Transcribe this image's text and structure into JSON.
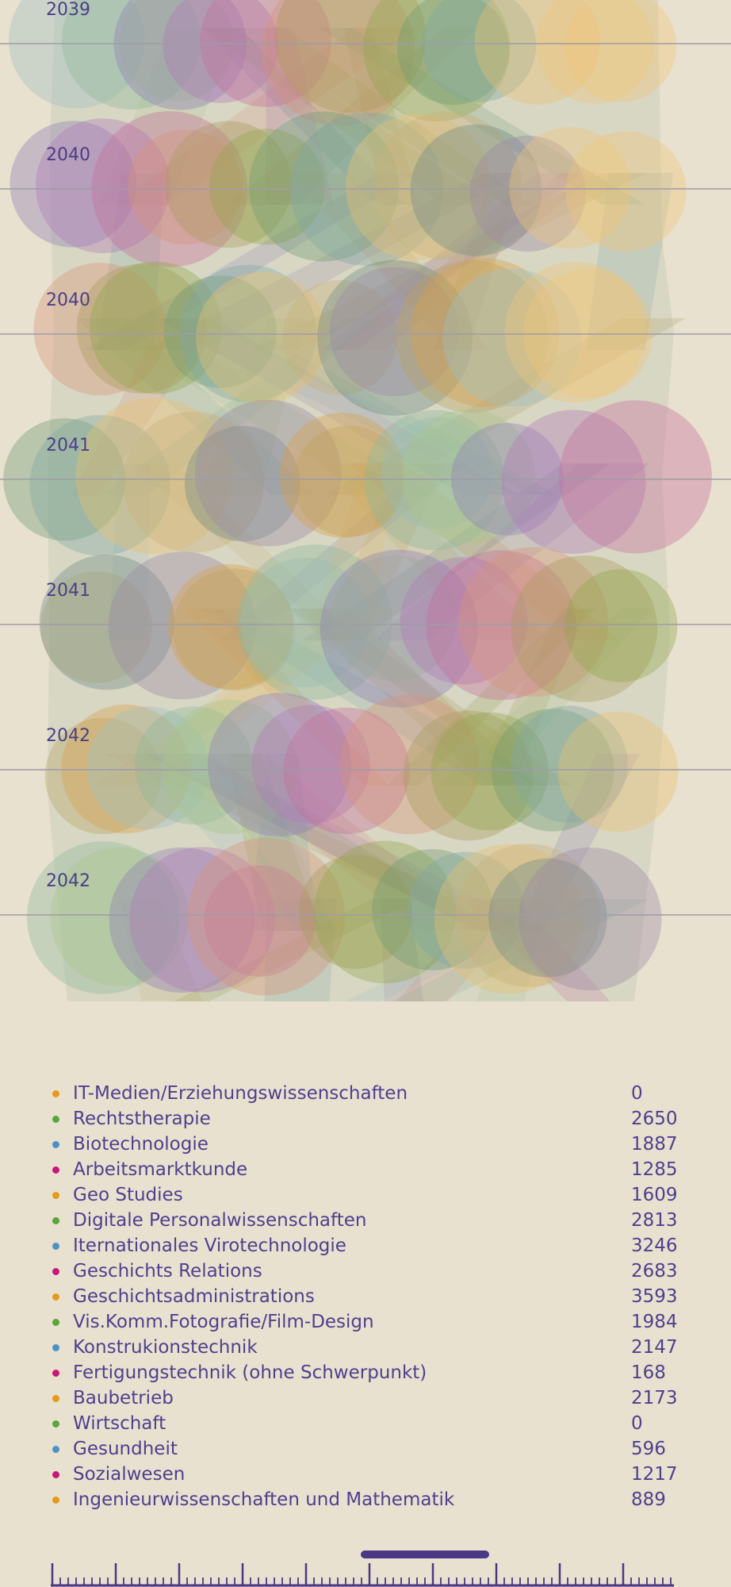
{
  "colors": {
    "background": "#e8e1cf",
    "text": "#4f3f8e",
    "gridline": "#9f9ba8",
    "orange": "#e59a1c",
    "green": "#5aa53c",
    "blue": "#4b93c4",
    "magenta": "#c8177a",
    "timeline": "#4a3886"
  },
  "chart_data": {
    "type": "scatter",
    "title": "",
    "xlabel": "",
    "ylabel": "",
    "rows": [
      "2039",
      "2040",
      "2040",
      "2041",
      "2041",
      "2042",
      "2042"
    ],
    "grid": true,
    "legend_placement": "bottom"
  },
  "legend": [
    {
      "name": "IT-Medien/Erziehungswissenschaften",
      "value": "0",
      "color": "orange"
    },
    {
      "name": "Rechtstherapie",
      "value": "2650",
      "color": "green"
    },
    {
      "name": "Biotechnologie",
      "value": "1887",
      "color": "blue"
    },
    {
      "name": "Arbeitsmarktkunde",
      "value": "1285",
      "color": "magenta"
    },
    {
      "name": "Geo Studies",
      "value": "1609",
      "color": "orange"
    },
    {
      "name": "Digitale Personalwissenschaften",
      "value": "2813",
      "color": "green"
    },
    {
      "name": "Iternationales Virotechnologie",
      "value": "3246",
      "color": "blue"
    },
    {
      "name": "Geschichts Relations",
      "value": "2683",
      "color": "magenta"
    },
    {
      "name": "Geschichtsadministrations",
      "value": "3593",
      "color": "orange"
    },
    {
      "name": "Vis.Komm.Fotografie/Film-Design",
      "value": "1984",
      "color": "green"
    },
    {
      "name": "Konstrukionstechnik",
      "value": "2147",
      "color": "blue"
    },
    {
      "name": "Fertigungstechnik (ohne Schwerpunkt)",
      "value": "168",
      "color": "magenta"
    },
    {
      "name": "Baubetrieb",
      "value": "2173",
      "color": "orange"
    },
    {
      "name": "Wirtschaft",
      "value": "0",
      "color": "green"
    },
    {
      "name": "Gesundheit",
      "value": "596",
      "color": "blue"
    },
    {
      "name": "Sozialwesen",
      "value": "1217",
      "color": "magenta"
    },
    {
      "name": "Ingenieurwissenschaften und Mathematik",
      "value": "889",
      "color": "orange"
    }
  ]
}
